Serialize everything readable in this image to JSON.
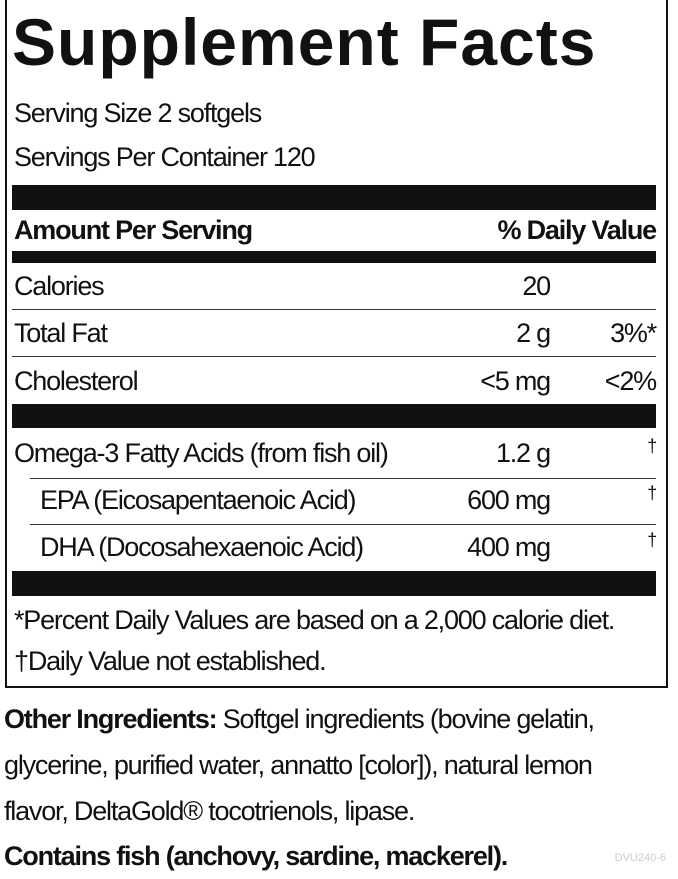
{
  "title": "Supplement Facts",
  "serving_size": "Serving Size 2 softgels",
  "servings_per_container": "Servings Per Container 120",
  "header": {
    "amount": "Amount Per Serving",
    "dv": "% Daily Value"
  },
  "rows": [
    {
      "name": "Calories",
      "amount": "20",
      "dv": ""
    },
    {
      "name": "Total Fat",
      "amount": "2 g",
      "dv": "3%*"
    },
    {
      "name": "Cholesterol",
      "amount": "<5 mg",
      "dv": "<2%"
    },
    {
      "name": "Omega-3 Fatty Acids (from fish oil)",
      "amount": "1.2 g",
      "dv": "†"
    },
    {
      "name": "EPA (Eicosapentaenoic Acid)",
      "amount": "600 mg",
      "dv": "†"
    },
    {
      "name": "DHA (Docosahexaenoic Acid)",
      "amount": "400 mg",
      "dv": "†"
    }
  ],
  "footnotes": [
    "*Percent Daily Values are based on a 2,000 calorie diet.",
    "†Daily Value not established."
  ],
  "other_ingredients": {
    "label": "Other Ingredients:",
    "line1": " Softgel ingredients (bovine gelatin,",
    "line2": "glycerine, purified water, annatto [color]), natural lemon",
    "line3": "flavor, DeltaGold® tocotrienols, lipase."
  },
  "allergen": "Contains fish (anchovy, sardine, mackerel).",
  "code": "DVU240-6"
}
